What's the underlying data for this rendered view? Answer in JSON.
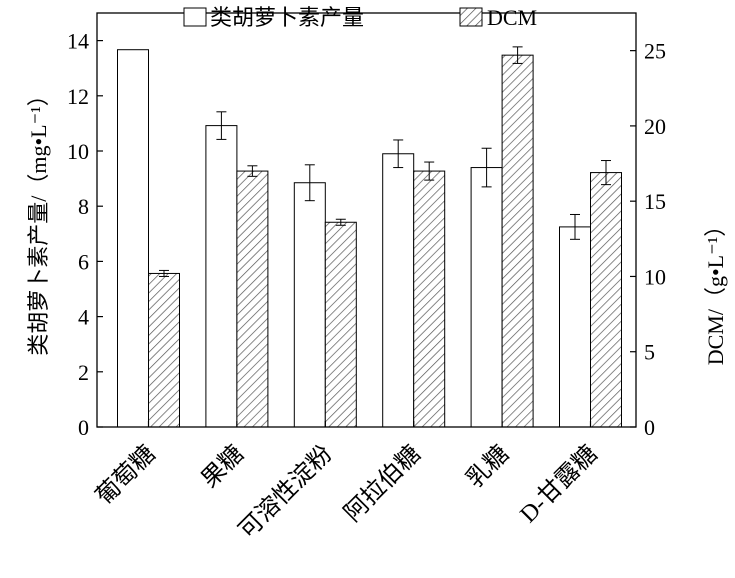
{
  "chart_data": {
    "type": "bar",
    "title": "",
    "categories": [
      "葡萄糖",
      "果糖",
      "可溶性淀粉",
      "阿拉伯糖",
      "乳糖",
      "D-甘露糖"
    ],
    "series": [
      {
        "name": "类胡萝卜素产量",
        "axis": "left",
        "style": "open",
        "values": [
          13.67,
          10.92,
          8.85,
          9.9,
          9.4,
          7.25
        ],
        "errors": [
          0,
          0.5,
          0.65,
          0.5,
          0.7,
          0.45
        ]
      },
      {
        "name": "DCM",
        "axis": "right",
        "style": "hatched",
        "values": [
          10.2,
          17.0,
          13.6,
          17.0,
          24.7,
          16.9
        ],
        "errors": [
          0.2,
          0.35,
          0.2,
          0.6,
          0.55,
          0.8
        ]
      }
    ],
    "ylabel": "类胡萝卜素产量/（mg•L⁻¹）",
    "ylabel_right": "DCM/（g•L⁻¹）",
    "ylim": [
      0,
      15
    ],
    "ylim_right": [
      0,
      27.5
    ],
    "yticks": [
      "0",
      "2",
      "4",
      "6",
      "8",
      "10",
      "12",
      "14"
    ],
    "yticks_right": [
      "0",
      "5",
      "10",
      "15",
      "20",
      "25"
    ],
    "legend_position": "top-center",
    "grid": false
  }
}
